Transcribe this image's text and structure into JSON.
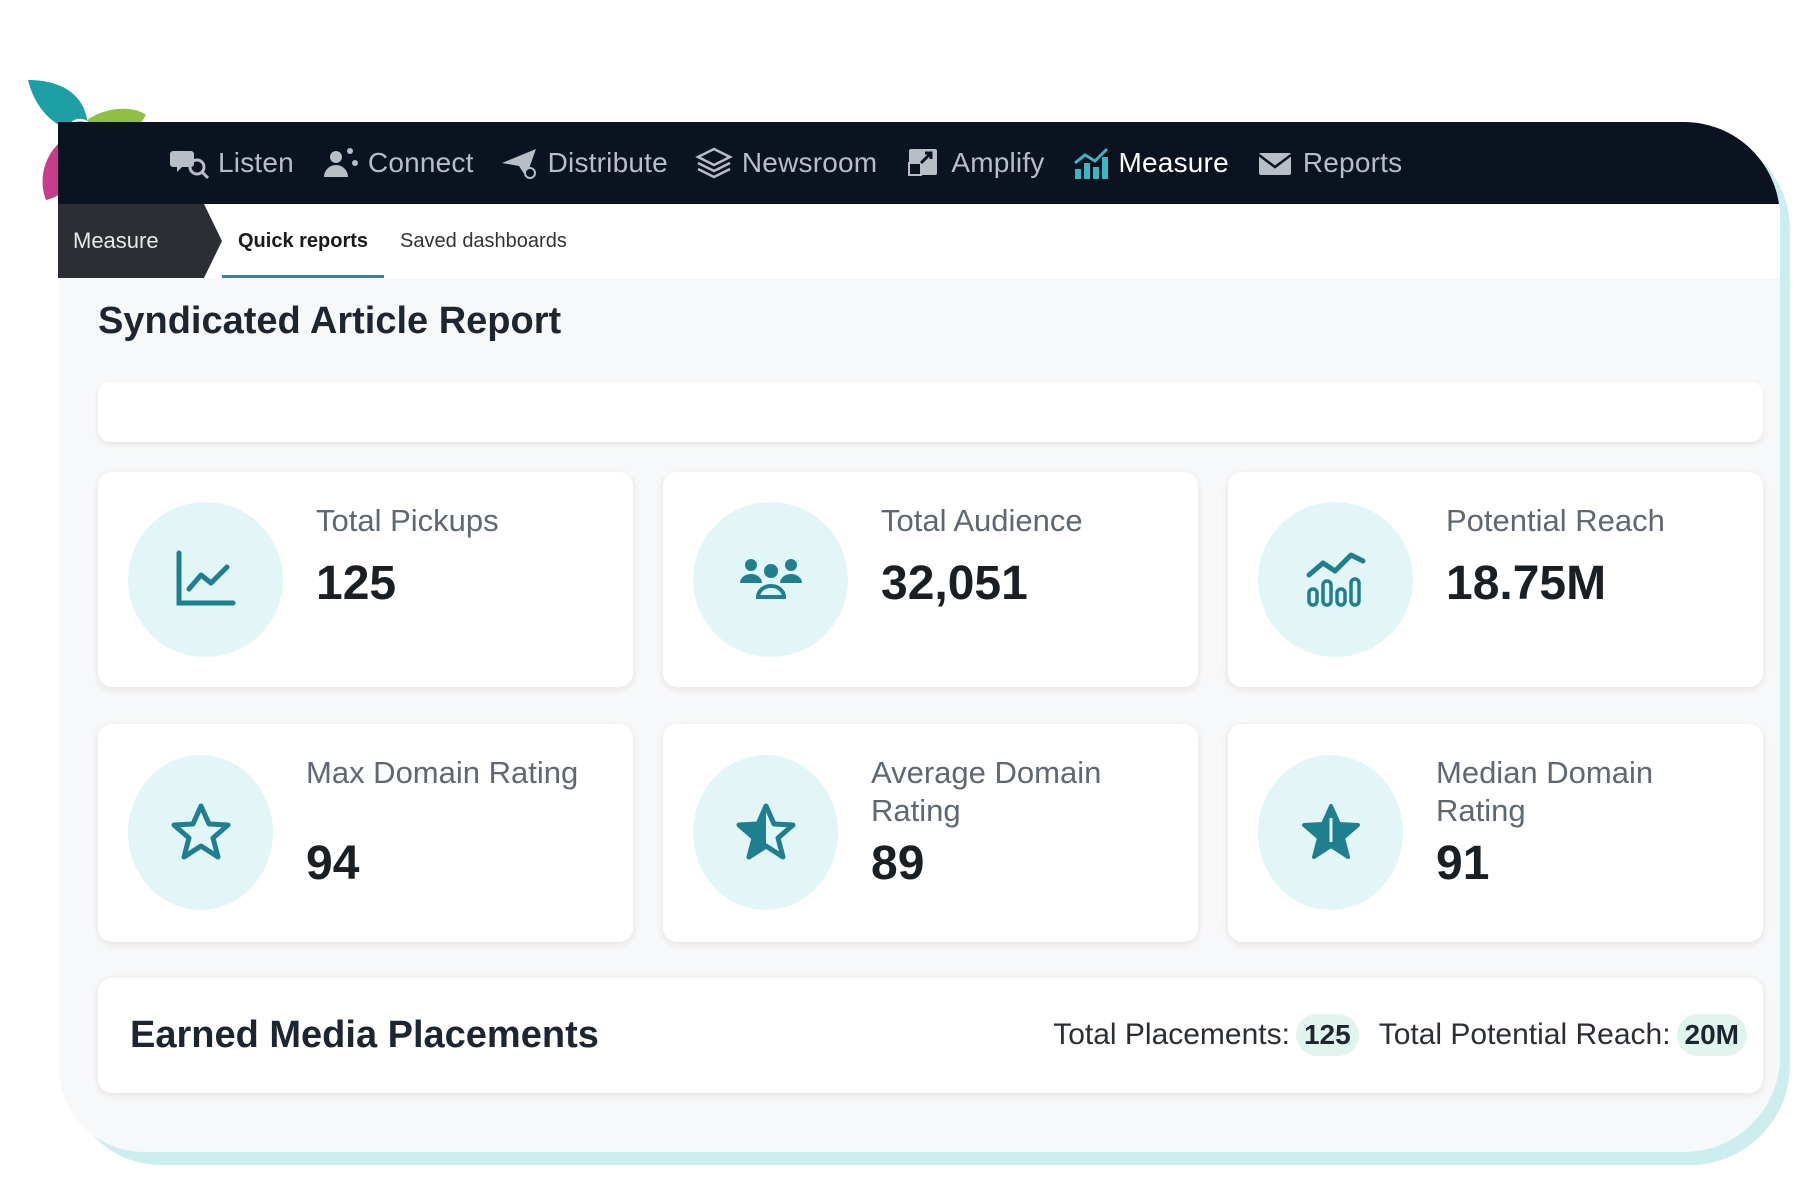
{
  "nav": {
    "items": [
      {
        "label": "Listen",
        "icon": "listen-icon",
        "active": false
      },
      {
        "label": "Connect",
        "icon": "connect-icon",
        "active": false
      },
      {
        "label": "Distribute",
        "icon": "distribute-icon",
        "active": false
      },
      {
        "label": "Newsroom",
        "icon": "newsroom-icon",
        "active": false
      },
      {
        "label": "Amplify",
        "icon": "amplify-icon",
        "active": false
      },
      {
        "label": "Measure",
        "icon": "measure-icon",
        "active": true
      },
      {
        "label": "Reports",
        "icon": "reports-icon",
        "active": false
      }
    ]
  },
  "subnav": {
    "breadcrumb": "Measure",
    "tabs": [
      {
        "label": "Quick reports",
        "active": true
      },
      {
        "label": "Saved dashboards",
        "active": false
      }
    ]
  },
  "page": {
    "title": "Syndicated Article Report"
  },
  "metrics": [
    {
      "label": "Total Pickups",
      "value": "125",
      "icon": "line-chart-icon"
    },
    {
      "label": "Total Audience",
      "value": "32,051",
      "icon": "people-icon"
    },
    {
      "label": "Potential Reach",
      "value": "18.75M",
      "icon": "bar-trend-icon"
    },
    {
      "label": "Max Domain Rating",
      "value": "94",
      "icon": "star-outline-icon"
    },
    {
      "label": "Average Domain Rating",
      "value": "89",
      "icon": "star-half-icon"
    },
    {
      "label": "Median Domain Rating",
      "value": "91",
      "icon": "star-filled-icon"
    }
  ],
  "earned_media": {
    "title": "Earned Media Placements",
    "total_placements_label": "Total Placements:",
    "total_placements_value": "125",
    "total_reach_label": "Total Potential Reach:",
    "total_reach_value": "20M"
  },
  "colors": {
    "nav_bg": "#0b1320",
    "accent": "#1f7f8f",
    "icon_circle": "#e2f6f7",
    "badge": "#dff5ee"
  }
}
